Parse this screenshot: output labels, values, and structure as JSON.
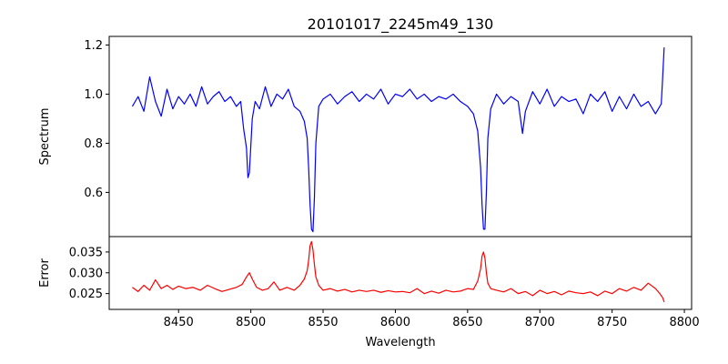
{
  "chart_data": [
    {
      "type": "line",
      "title": "20101017_2245m49_130",
      "xlabel": "",
      "ylabel": "Spectrum",
      "xlim": [
        8402,
        8805
      ],
      "ylim": [
        0.42,
        1.235
      ],
      "yticks": [
        0.6,
        0.8,
        1.0,
        1.2
      ],
      "ytick_labels": [
        "0.6",
        "0.8",
        "1.0",
        "1.2"
      ],
      "grid": false,
      "series": [
        {
          "color": "#0000ff",
          "x": [
            8418,
            8422,
            8426,
            8430,
            8434,
            8438,
            8442,
            8446,
            8450,
            8454,
            8458,
            8462,
            8466,
            8470,
            8474,
            8478,
            8482,
            8486,
            8490,
            8493,
            8495,
            8497,
            8498,
            8499,
            8500,
            8501,
            8503,
            8506,
            8510,
            8514,
            8518,
            8522,
            8526,
            8530,
            8534,
            8537,
            8539,
            8540,
            8541,
            8542,
            8543,
            8544,
            8545,
            8547,
            8550,
            8555,
            8560,
            8565,
            8570,
            8575,
            8580,
            8585,
            8590,
            8595,
            8600,
            8605,
            8610,
            8615,
            8620,
            8625,
            8630,
            8635,
            8640,
            8645,
            8650,
            8654,
            8657,
            8659,
            8660,
            8661,
            8662,
            8663,
            8664,
            8666,
            8670,
            8675,
            8680,
            8685,
            8688,
            8690,
            8695,
            8700,
            8705,
            8710,
            8715,
            8720,
            8725,
            8730,
            8735,
            8740,
            8745,
            8750,
            8755,
            8760,
            8765,
            8770,
            8775,
            8780,
            8784,
            8785,
            8786
          ],
          "y": [
            0.95,
            0.99,
            0.93,
            1.07,
            0.97,
            0.91,
            1.02,
            0.94,
            0.99,
            0.96,
            1.0,
            0.95,
            1.03,
            0.96,
            0.99,
            1.01,
            0.97,
            0.99,
            0.95,
            0.97,
            0.86,
            0.78,
            0.66,
            0.68,
            0.79,
            0.9,
            0.97,
            0.94,
            1.03,
            0.95,
            1.0,
            0.98,
            1.02,
            0.95,
            0.93,
            0.89,
            0.82,
            0.7,
            0.55,
            0.45,
            0.44,
            0.58,
            0.8,
            0.95,
            0.98,
            1.0,
            0.96,
            0.99,
            1.01,
            0.97,
            1.0,
            0.98,
            1.02,
            0.96,
            1.0,
            0.99,
            1.02,
            0.98,
            1.0,
            0.97,
            0.99,
            0.98,
            1.0,
            0.97,
            0.95,
            0.92,
            0.85,
            0.7,
            0.55,
            0.45,
            0.45,
            0.6,
            0.82,
            0.94,
            1.0,
            0.96,
            0.99,
            0.97,
            0.84,
            0.93,
            1.01,
            0.96,
            1.02,
            0.95,
            0.99,
            0.97,
            0.98,
            0.92,
            1.0,
            0.97,
            1.01,
            0.93,
            0.99,
            0.94,
            1.0,
            0.95,
            0.97,
            0.92,
            0.96,
            1.07,
            1.19
          ]
        }
      ]
    },
    {
      "type": "line",
      "title": "",
      "xlabel": "Wavelength",
      "ylabel": "Error",
      "xlim": [
        8402,
        8805
      ],
      "ylim": [
        0.0212,
        0.0387
      ],
      "xticks": [
        8450,
        8500,
        8550,
        8600,
        8650,
        8700,
        8750,
        8800
      ],
      "xtick_labels": [
        "8450",
        "8500",
        "8550",
        "8600",
        "8650",
        "8700",
        "8750",
        "8800"
      ],
      "yticks": [
        0.025,
        0.03,
        0.035
      ],
      "ytick_labels": [
        "0.025",
        "0.030",
        "0.035"
      ],
      "grid": false,
      "series": [
        {
          "color": "#ff0000",
          "x": [
            8418,
            8422,
            8426,
            8430,
            8434,
            8438,
            8442,
            8446,
            8450,
            8455,
            8460,
            8465,
            8470,
            8475,
            8480,
            8485,
            8490,
            8494,
            8497,
            8499,
            8501,
            8504,
            8508,
            8512,
            8516,
            8520,
            8525,
            8530,
            8534,
            8537,
            8539,
            8540,
            8541,
            8542,
            8543,
            8544,
            8545,
            8547,
            8550,
            8555,
            8560,
            8565,
            8570,
            8575,
            8580,
            8585,
            8590,
            8595,
            8600,
            8605,
            8610,
            8615,
            8620,
            8625,
            8630,
            8635,
            8640,
            8645,
            8650,
            8654,
            8657,
            8659,
            8660,
            8661,
            8662,
            8663,
            8664,
            8666,
            8670,
            8675,
            8680,
            8685,
            8690,
            8695,
            8700,
            8705,
            8710,
            8715,
            8720,
            8725,
            8730,
            8735,
            8740,
            8745,
            8750,
            8755,
            8760,
            8765,
            8770,
            8775,
            8780,
            8783,
            8785,
            8786
          ],
          "y": [
            0.0265,
            0.0255,
            0.027,
            0.0258,
            0.0283,
            0.0262,
            0.027,
            0.026,
            0.0268,
            0.0262,
            0.0265,
            0.0258,
            0.027,
            0.0262,
            0.0255,
            0.026,
            0.0265,
            0.0272,
            0.029,
            0.03,
            0.0285,
            0.0265,
            0.0258,
            0.0262,
            0.0278,
            0.0258,
            0.0265,
            0.0258,
            0.027,
            0.0285,
            0.0305,
            0.033,
            0.0365,
            0.0375,
            0.0355,
            0.032,
            0.029,
            0.027,
            0.0258,
            0.0262,
            0.0256,
            0.026,
            0.0254,
            0.0258,
            0.0255,
            0.0258,
            0.0253,
            0.0257,
            0.0254,
            0.0255,
            0.0252,
            0.0262,
            0.025,
            0.0256,
            0.0251,
            0.0258,
            0.0254,
            0.0256,
            0.0262,
            0.026,
            0.028,
            0.031,
            0.034,
            0.035,
            0.0335,
            0.03,
            0.0275,
            0.0262,
            0.0258,
            0.0254,
            0.0262,
            0.025,
            0.0255,
            0.0245,
            0.0258,
            0.025,
            0.0255,
            0.0247,
            0.0256,
            0.0252,
            0.025,
            0.0254,
            0.0245,
            0.0256,
            0.025,
            0.0262,
            0.0256,
            0.0265,
            0.0258,
            0.0275,
            0.0262,
            0.025,
            0.024,
            0.023
          ]
        }
      ]
    }
  ]
}
